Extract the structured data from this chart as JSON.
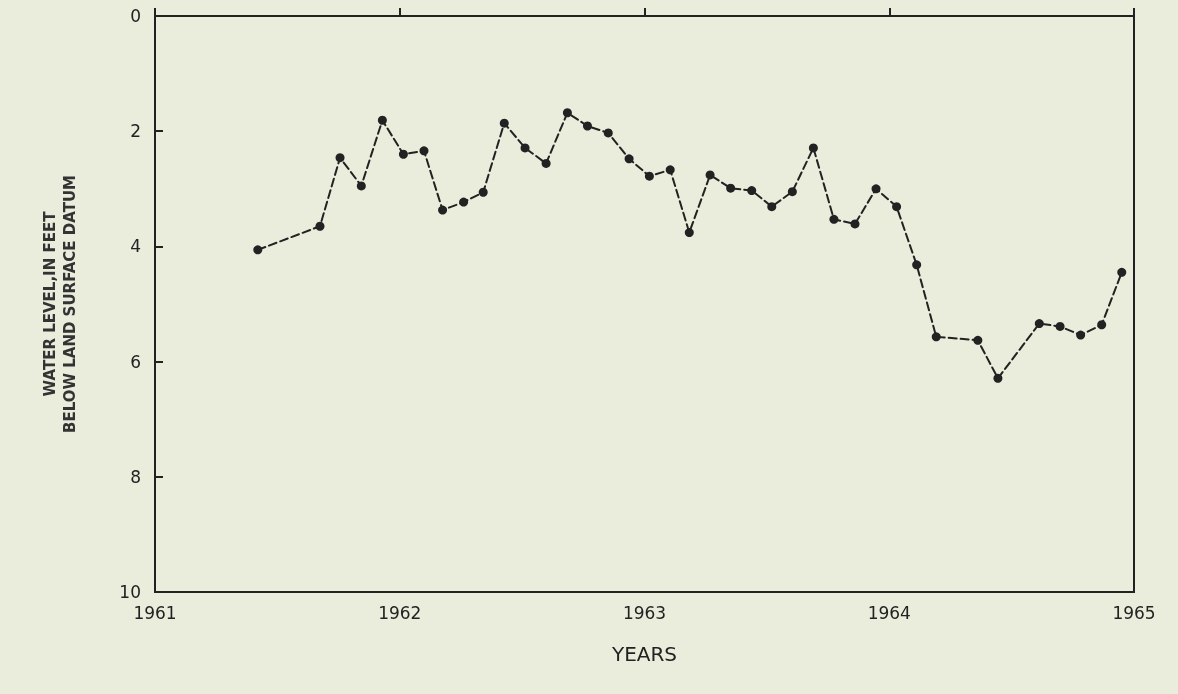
{
  "chart_data": {
    "type": "line",
    "xlabel": "YEARS",
    "ylabel": "WATER LEVEL,IN FEET\nBELOW LAND SURFACE DATUM",
    "xlim": [
      1961,
      1965
    ],
    "xticks": [
      1961,
      1962,
      1963,
      1964,
      1965
    ],
    "ylim": [
      10,
      0
    ],
    "yticks": [
      0,
      2,
      4,
      6,
      8,
      10
    ],
    "grid": false,
    "marker": "circle",
    "line_style": "dashed",
    "series": [
      {
        "color": "#222222",
        "x": [
          1961.42,
          1961.674,
          1961.756,
          1961.843,
          1961.929,
          1962.015,
          1962.099,
          1962.175,
          1962.261,
          1962.341,
          1962.427,
          1962.512,
          1962.598,
          1962.685,
          1962.767,
          1962.852,
          1962.937,
          1963.02,
          1963.105,
          1963.183,
          1963.268,
          1963.352,
          1963.438,
          1963.52,
          1963.604,
          1963.69,
          1963.774,
          1963.86,
          1963.946,
          1964.03,
          1964.112,
          1964.192,
          1964.362,
          1964.444,
          1964.613,
          1964.698,
          1964.782,
          1964.868,
          1964.95
        ],
        "values": [
          4.06,
          3.65,
          2.46,
          2.95,
          1.81,
          2.4,
          2.34,
          3.37,
          3.23,
          3.06,
          1.86,
          2.29,
          2.56,
          1.68,
          1.91,
          2.03,
          2.48,
          2.78,
          2.67,
          3.76,
          2.76,
          2.99,
          3.03,
          3.31,
          3.05,
          2.29,
          3.53,
          3.61,
          3.0,
          3.31,
          4.32,
          5.57,
          5.63,
          6.29,
          5.34,
          5.39,
          5.54,
          5.36,
          4.45
        ]
      }
    ]
  }
}
